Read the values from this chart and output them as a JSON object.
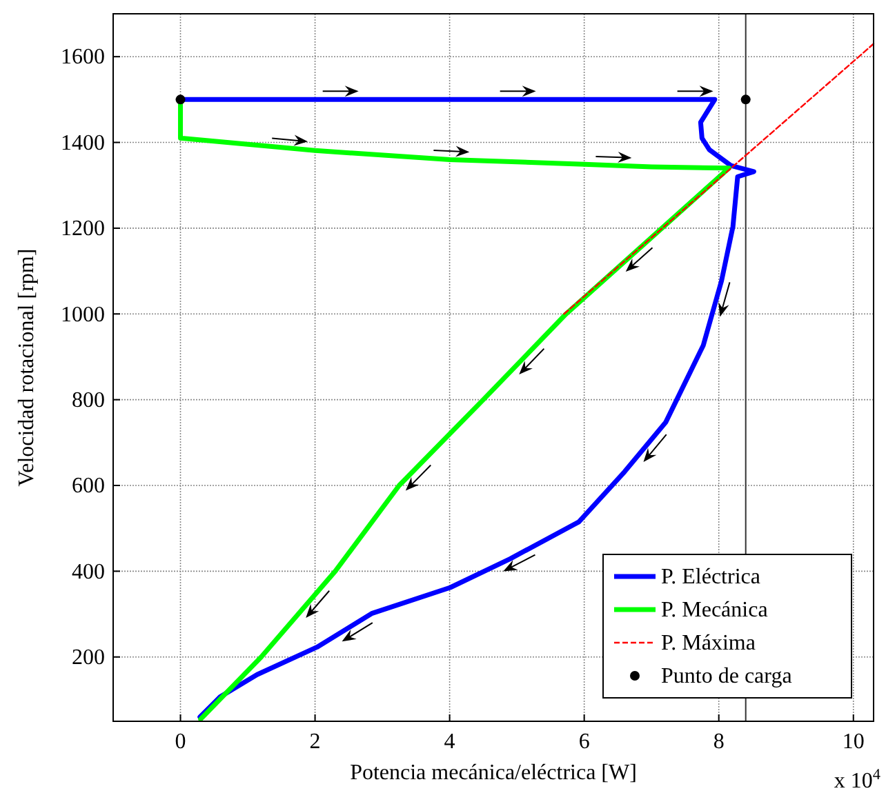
{
  "chart_data": {
    "type": "line",
    "xlabel": "Potencia mecánica/eléctrica [W]",
    "ylabel": "Velocidad rotacional [rpm]",
    "annotations": [
      "x 10$^{4}$"
    ],
    "xlim": [
      -1,
      10.3
    ],
    "ylim": [
      50,
      1700
    ],
    "xticks": [
      0,
      2,
      4,
      6,
      8,
      10
    ],
    "yticks": [
      200,
      400,
      600,
      800,
      1000,
      1200,
      1400,
      1600
    ],
    "grid": true,
    "legend": "bottom right",
    "marker": "none",
    "line_style": "solid",
    "ref_lines": [
      {
        "axis": "x",
        "value": 8.4,
        "color": "#333333"
      }
    ],
    "series": [
      {
        "name": "P. Eléctrica",
        "color": "#0000ff",
        "x": [
          0,
          2,
          4,
          6,
          7.94,
          7.86,
          7.73,
          7.75,
          7.86,
          8.18,
          8.52,
          8.28,
          8.21,
          8.04,
          7.77,
          7.21,
          6.6,
          5.92,
          4.9,
          4.01,
          2.85,
          2.03,
          1.14,
          0.59,
          0.29
        ],
        "values": [
          1500,
          1500,
          1500,
          1500,
          1500,
          1480,
          1447,
          1410,
          1383,
          1346,
          1332,
          1320,
          1204,
          1077,
          927,
          747,
          632,
          515,
          429,
          362,
          302,
          223,
          159,
          107,
          60
        ]
      },
      {
        "name": "P. Mecánica",
        "color": "#00ff00",
        "x": [
          0,
          0,
          2,
          4,
          6,
          7,
          8.15,
          5.73,
          4.5,
          3.25,
          2.3,
          1.2,
          0.3
        ],
        "values": [
          1500,
          1410,
          1381,
          1360,
          1349,
          1343,
          1340,
          1000,
          800,
          600,
          400,
          200,
          55
        ]
      },
      {
        "name": "P. Máxima",
        "color": "#ff0000",
        "line_style": "dashed",
        "x": [
          5.7,
          10.3
        ],
        "values": [
          1000,
          1630
        ]
      },
      {
        "name": "Punto de carga",
        "type": "scatter",
        "marker": "circle",
        "color": "#000000",
        "x": [
          0,
          8.4
        ],
        "values": [
          1500,
          1500
        ]
      }
    ]
  }
}
